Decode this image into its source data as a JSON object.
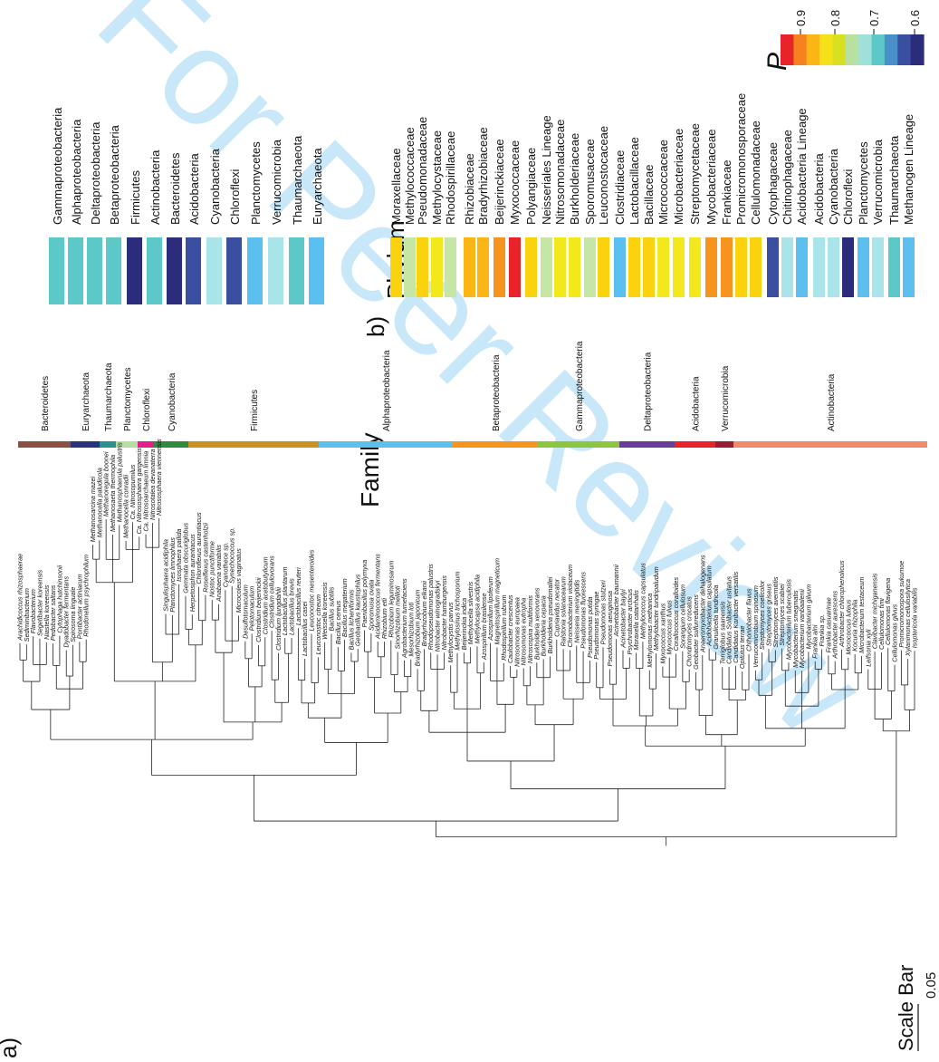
{
  "panel_labels": {
    "a": "a)",
    "b": "b)"
  },
  "scale_bar": {
    "label": "Scale Bar",
    "value": "0.05"
  },
  "watermark": {
    "text": "For Peer Review",
    "color": "#8fd0f2"
  },
  "legend": {
    "title": "P",
    "ticks": [
      "0.9",
      "0.8",
      "0.7",
      "0.6"
    ],
    "colors": [
      "#e8232a",
      "#f5821f",
      "#fbb514",
      "#f5e11a",
      "#d9e021",
      "#b8e0a0",
      "#9fe0d8",
      "#5cc8c8",
      "#4a90c8",
      "#3a4fa0",
      "#2b2c7c"
    ]
  },
  "phylum_block": {
    "title": "Phylum",
    "items": [
      {
        "label": "Gammaproteobacteria",
        "color": "#5cc8c8"
      },
      {
        "label": "Alphaproteobacteria",
        "color": "#5cc8c8"
      },
      {
        "label": "Deltaproteobacteria",
        "color": "#5cc8c8"
      },
      {
        "label": "Betaproteobacteria",
        "color": "#5cc8c8"
      },
      {
        "label": "Firmicutes",
        "color": "#2b2c7c"
      },
      {
        "label": "Actinobacteria",
        "color": "#5cc8c8"
      },
      {
        "label": "Bacteroidetes",
        "color": "#2b2c7c"
      },
      {
        "label": "Acidobacteria",
        "color": "#3a4fa0"
      },
      {
        "label": "Cyanobacteria",
        "color": "#a8e4e8"
      },
      {
        "label": "Chloroflexi",
        "color": "#3a4fa0"
      },
      {
        "label": "Planctomycetes",
        "color": "#5bbfef"
      },
      {
        "label": "Verrucomicrobia",
        "color": "#a8e4e8"
      },
      {
        "label": "Thaumarchaeota",
        "color": "#5cc8c8"
      },
      {
        "label": "Euryarchaeota",
        "color": "#5bbfef"
      }
    ]
  },
  "family_block": {
    "title": "Family",
    "items": [
      {
        "label": "Moraxellaceae",
        "color": "#fbd20e"
      },
      {
        "label": "Methylococcaceae",
        "color": "#c5e6a4"
      },
      {
        "label": "Pseudomonadaceae",
        "color": "#fbd20e"
      },
      {
        "label": "Methylocystaceae",
        "color": "#f2e81c"
      },
      {
        "label": "Rhodospirillaceae",
        "color": "#c5e6a4"
      },
      {
        "label": "Rhizobiaceae",
        "color": "#fbb514"
      },
      {
        "label": "Bradyrhizobiaceae",
        "color": "#fbb514"
      },
      {
        "label": "Beijerinckiaceae",
        "color": "#f7941d"
      },
      {
        "label": "Myxococcaceae",
        "color": "#e8232a"
      },
      {
        "label": "Polyangiaceae",
        "color": "#fbd20e"
      },
      {
        "label": "Neisseriales Lineage",
        "color": "#c5e6a4"
      },
      {
        "label": "Nitrosomonadaceae",
        "color": "#f2e81c"
      },
      {
        "label": "Burkholderiaceae",
        "color": "#f2e81c"
      },
      {
        "label": "Sporomusaceae",
        "color": "#c5e6a4"
      },
      {
        "label": "Leuconostocaceae",
        "color": "#fbd20e"
      },
      {
        "label": "Clostridiaceae",
        "color": "#5bbfef"
      },
      {
        "label": "Lactobacillaceae",
        "color": "#fbd20e"
      },
      {
        "label": "Bacillaceae",
        "color": "#fbd20e"
      },
      {
        "label": "Micrococcaceae",
        "color": "#f2e81c"
      },
      {
        "label": "Microbacteriaceae",
        "color": "#f2e81c"
      },
      {
        "label": "Streptomycetaceae",
        "color": "#f2e81c"
      },
      {
        "label": "Mycobacteriaceae",
        "color": "#f7941d"
      },
      {
        "label": "Frankiaceae",
        "color": "#f7941d"
      },
      {
        "label": "Promicromonosporaceae",
        "color": "#fbd20e"
      },
      {
        "label": "Cellulomonadaceae",
        "color": "#fbd20e"
      },
      {
        "label": "Cytophagaceae",
        "color": "#3a4fa0"
      },
      {
        "label": "Chitinophagaceae",
        "color": "#a8e4e8"
      },
      {
        "label": "Acidobacteria Lineage",
        "color": "#5bbfef"
      },
      {
        "label": "Acidobacteria",
        "color": "#a8e4e8"
      },
      {
        "label": "Cyanobacteria",
        "color": "#a8e4e8"
      },
      {
        "label": "Chloroflexi",
        "color": "#2b2c7c"
      },
      {
        "label": "Planctomycetes",
        "color": "#5bbfef"
      },
      {
        "label": "Verrucomicrobia",
        "color": "#a8e4e8"
      },
      {
        "label": "Thaumarchaeota",
        "color": "#5cc8c8"
      },
      {
        "label": "Methanogen Lineage",
        "color": "#5bbfef"
      }
    ]
  },
  "clade_strip": [
    {
      "label": "Bacteroidetes",
      "color": "#8b5040"
    },
    {
      "label": "Euryarchaeota",
      "color": "#2b3280"
    },
    {
      "label": "Thaumarchaeota",
      "color": "#2a8f8f"
    },
    {
      "label": "Planctomycetes",
      "color": "#b5dfa0"
    },
    {
      "label": "Chloroflexi",
      "color": "#e0208a"
    },
    {
      "label": "Cyanobacteria",
      "color": "#2e8b3c"
    },
    {
      "label": "Firmicutes",
      "color": "#c8921e"
    },
    {
      "label": "Alphaproteobacteria",
      "color": "#5bbfef"
    },
    {
      "label": "Betaproteobacteria",
      "color": "#f7941d"
    },
    {
      "label": "Gammaproteobacteria",
      "color": "#8cc63e"
    },
    {
      "label": "Deltaproteobacteria",
      "color": "#6a3d9a"
    },
    {
      "label": "Acidobacteria",
      "color": "#e8232a"
    },
    {
      "label": "Verrucomicrobia",
      "color": "#9b1c2e"
    },
    {
      "label": "Actinobacteria",
      "color": "#f08a6a"
    }
  ],
  "taxa": [
    "Arachidicoccus rhizosphaerae",
    "Sediminibacterium",
    "Flavobacterium",
    "Segetibacter koreensis",
    "Niastella koreensis",
    "Pedobacter saltans",
    "Cytophaga hutchinsonii",
    "Dyadobacter fermentans",
    "Spirosoma linguale",
    "Pontibacter actiniarum",
    "Rhodonellum psychrophilum",
    "Methanosarcina mazei",
    "Methanocella paludicola",
    "Methanoregula boonei",
    "Methanosaeta thermophila",
    "Methanosphaerula palustris",
    "Methanocella conradii",
    "Ca. Nitrosopumilus",
    "Ca. Nitrososphaera gargensis",
    "Ca. Nitrosoarchaeum limnia",
    "Nitrosotalea devanaterra",
    "Nitrososphaera viennensis",
    "Singulisphaera acidiphila",
    "Planctomyces limnophilus",
    "Isosphaera pallida",
    "Gemmata obscuriglobus",
    "Herpetosiphon aurantiacus",
    "Chloroflexus aurantiacus",
    "Roseiflexus castenholzii",
    "Nostoc punctiforme",
    "Anabaena variabilis",
    "Cyanothece sp.",
    "Synechococcus sp.",
    "Microcoleus vaginatus",
    "Desulfotomaculum",
    "Pelotomaculum",
    "Clostridium beijerinckii",
    "Clostridium acetobutylicum",
    "Clostridium cellulovorans",
    "Clostridium ljungdahlii",
    "Lactobacillus plantarum",
    "Lactobacillus brevis",
    "Lactobacillus reuteri",
    "Lactobacillus casei",
    "Leuconostoc mesenteroides",
    "Leuconostoc citreum",
    "Weissella koreensis",
    "Bacillus subtilis",
    "Bacillus cereus",
    "Bacillus megaterium",
    "Bacillus licheniformis",
    "Geobacillus kaustophilus",
    "Paenibacillus polymyxa",
    "Sporomusa ovata",
    "Acidaminococcus fermentans",
    "Rhizobium etli",
    "Rhizobium leguminosarum",
    "Sinorhizobium meliloti",
    "Agrobacterium tumefaciens",
    "Mesorhizobium loti",
    "Bradyrhizobium japonicum",
    "Bradyrhizobium elkanii",
    "Rhodopseudomonas palustris",
    "Nitrobacter winogradskyi",
    "Nitrobacter hamburgensis",
    "Methylocystis parvus",
    "Methylosinus trichosporium",
    "Beijerinckia indica",
    "Methylocella silvestris",
    "Methylocapsa acidiphila",
    "Azospirillum brasilense",
    "Azospirillum lipoferum",
    "Magnetospirillum magneticum",
    "Rhodospirillum rubrum",
    "Caulobacter crescentus",
    "Nitrosomonas europaea",
    "Nitrosomonas eutropha",
    "Nitrosospira multiformis",
    "Burkholderia xenovorans",
    "Burkholderia cepacia",
    "Burkholderia pseudomallei",
    "Cupriavidus necator",
    "Ralstonia solanacearum",
    "Chromobacterium violaceum",
    "Neisseria meningitidis",
    "Pseudomonas fluorescens",
    "Pseudomonas putida",
    "Pseudomonas syringae",
    "Pseudomonas stutzeri",
    "Pseudomonas aeruginosa",
    "Acinetobacter baumannii",
    "Acinetobacter baylyi",
    "Psychrobacter arcticus",
    "Moraxella catarrhalis",
    "Methylococcus capsulatus",
    "Methylomonas methanica",
    "Methylobacter tundripaludum",
    "Myxococcus xanthus",
    "Myxococcus fulvus",
    "Corallococcus coralloides",
    "Sorangium cellulosum",
    "Chondromyces crocatus",
    "Geobacter sulfurreducens",
    "Anaeromyxobacter dehalogenans",
    "Acidobacterium capsulatum",
    "Granulicella tundricola",
    "Terriglobus saanensis",
    "Candidatus Solibacter usitatus",
    "Candidatus Koribacter versatilis",
    "Opitutus terrae",
    "Chthoniobacter flavus",
    "Verrucomicrobium spinosum",
    "Streptomyces coelicolor",
    "Streptomyces griseus",
    "Streptomyces avermitilis",
    "Streptomyces scabiei",
    "Mycobacterium tuberculosis",
    "Mycobacterium smegmatis",
    "Mycobacterium vanbaalenii",
    "Mycobacterium gilvum",
    "Frankia alni",
    "Frankia sp.",
    "Frankia casuarinae",
    "Arthrobacter aurescens",
    "Arthrobacter chlorophenolicus",
    "Micrococcus luteus",
    "Kocuria rhizophila",
    "Microbacterium testaceum",
    "Leifsonia xyli",
    "Clavibacter michiganensis",
    "Cellulomonas fimi",
    "Cellulomonas flavigena",
    "Cellulomonas gilvus",
    "Promicromonospora sukumoe",
    "Xylanimonas cellulosilytica",
    "Isoptericola variabilis"
  ]
}
